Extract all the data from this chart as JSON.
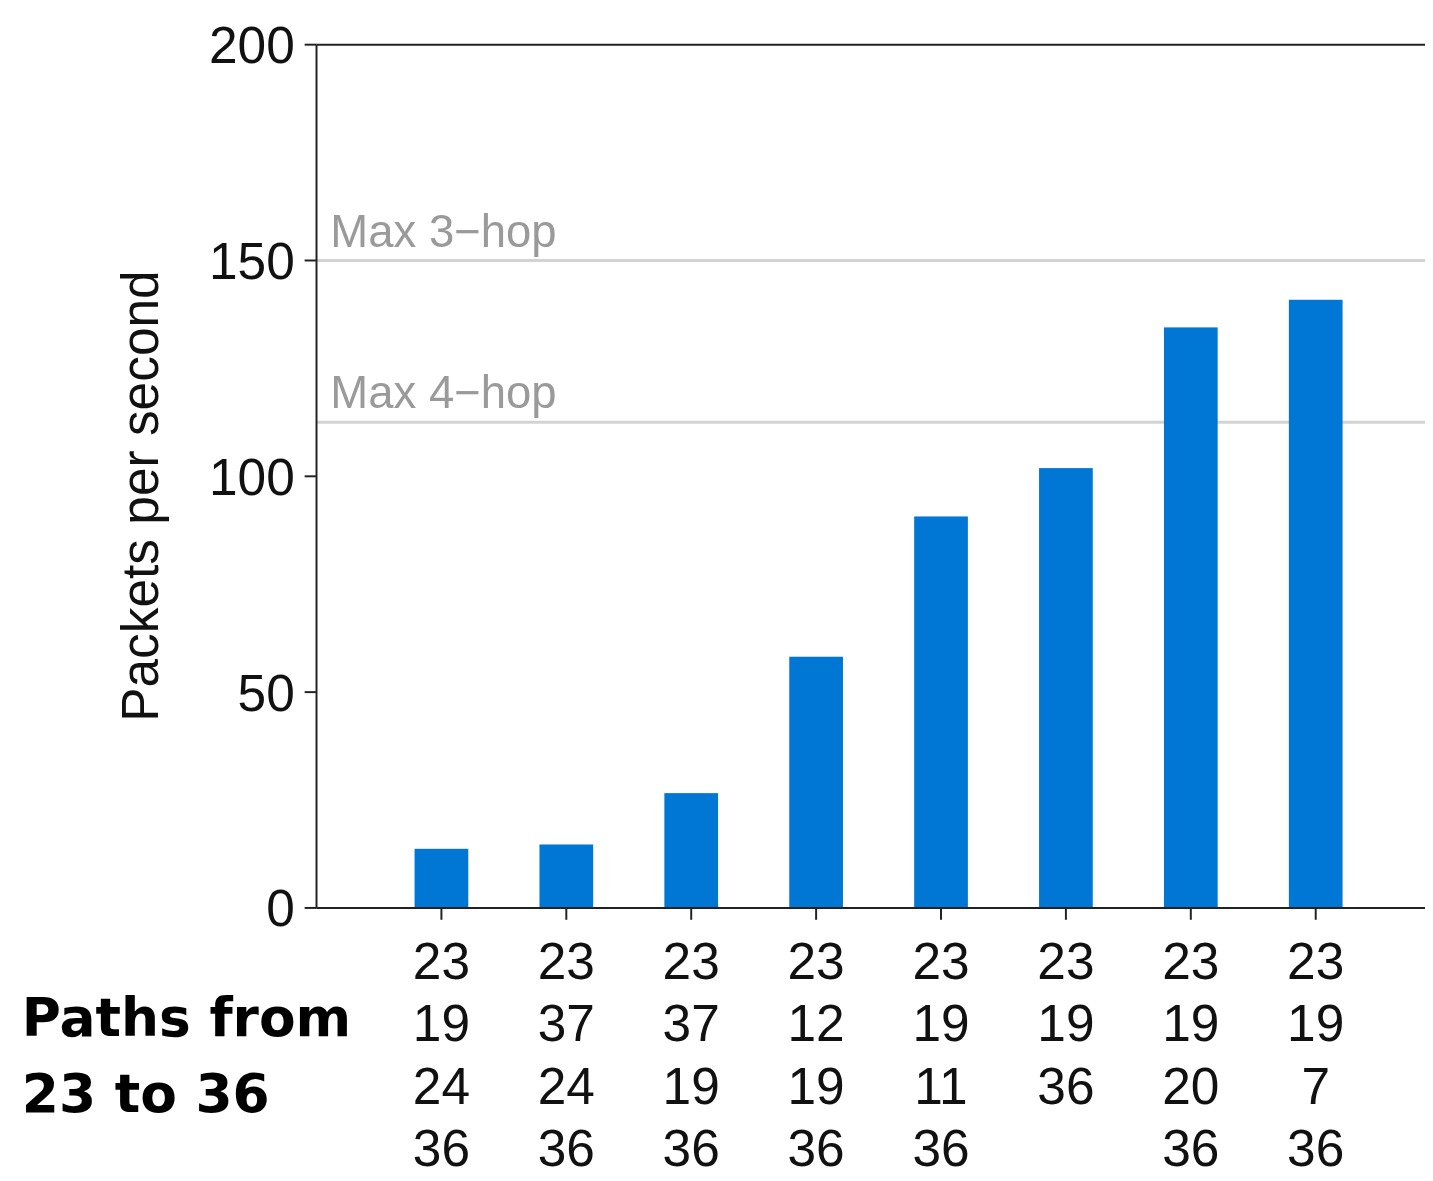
{
  "chart_data": {
    "type": "bar",
    "ylabel": "Packets per second",
    "xlabel": "Paths from\n23 to 36",
    "categories": [
      "23\n19\n24\n36",
      "23\n37\n24\n36",
      "23\n37\n19\n36",
      "23\n12\n19\n36",
      "23\n19\n11\n36",
      "23\n19\n36",
      "23\n19\n20\n36",
      "23\n19\n7\n36"
    ],
    "values": [
      13.7,
      14.7,
      26.6,
      58.2,
      90.7,
      101.9,
      134.5,
      140.9
    ],
    "color": "#0077d4",
    "ylim": [
      0,
      200
    ],
    "yticks": [
      0,
      50,
      100,
      150,
      200
    ],
    "grid": false,
    "ref_lines": [
      {
        "axis": "y",
        "value": 150,
        "label": "Max 3−hop",
        "color": "#d3d3d3"
      },
      {
        "axis": "y",
        "value": 112.5,
        "label": "Max 4−hop",
        "color": "#d3d3d3"
      }
    ]
  }
}
